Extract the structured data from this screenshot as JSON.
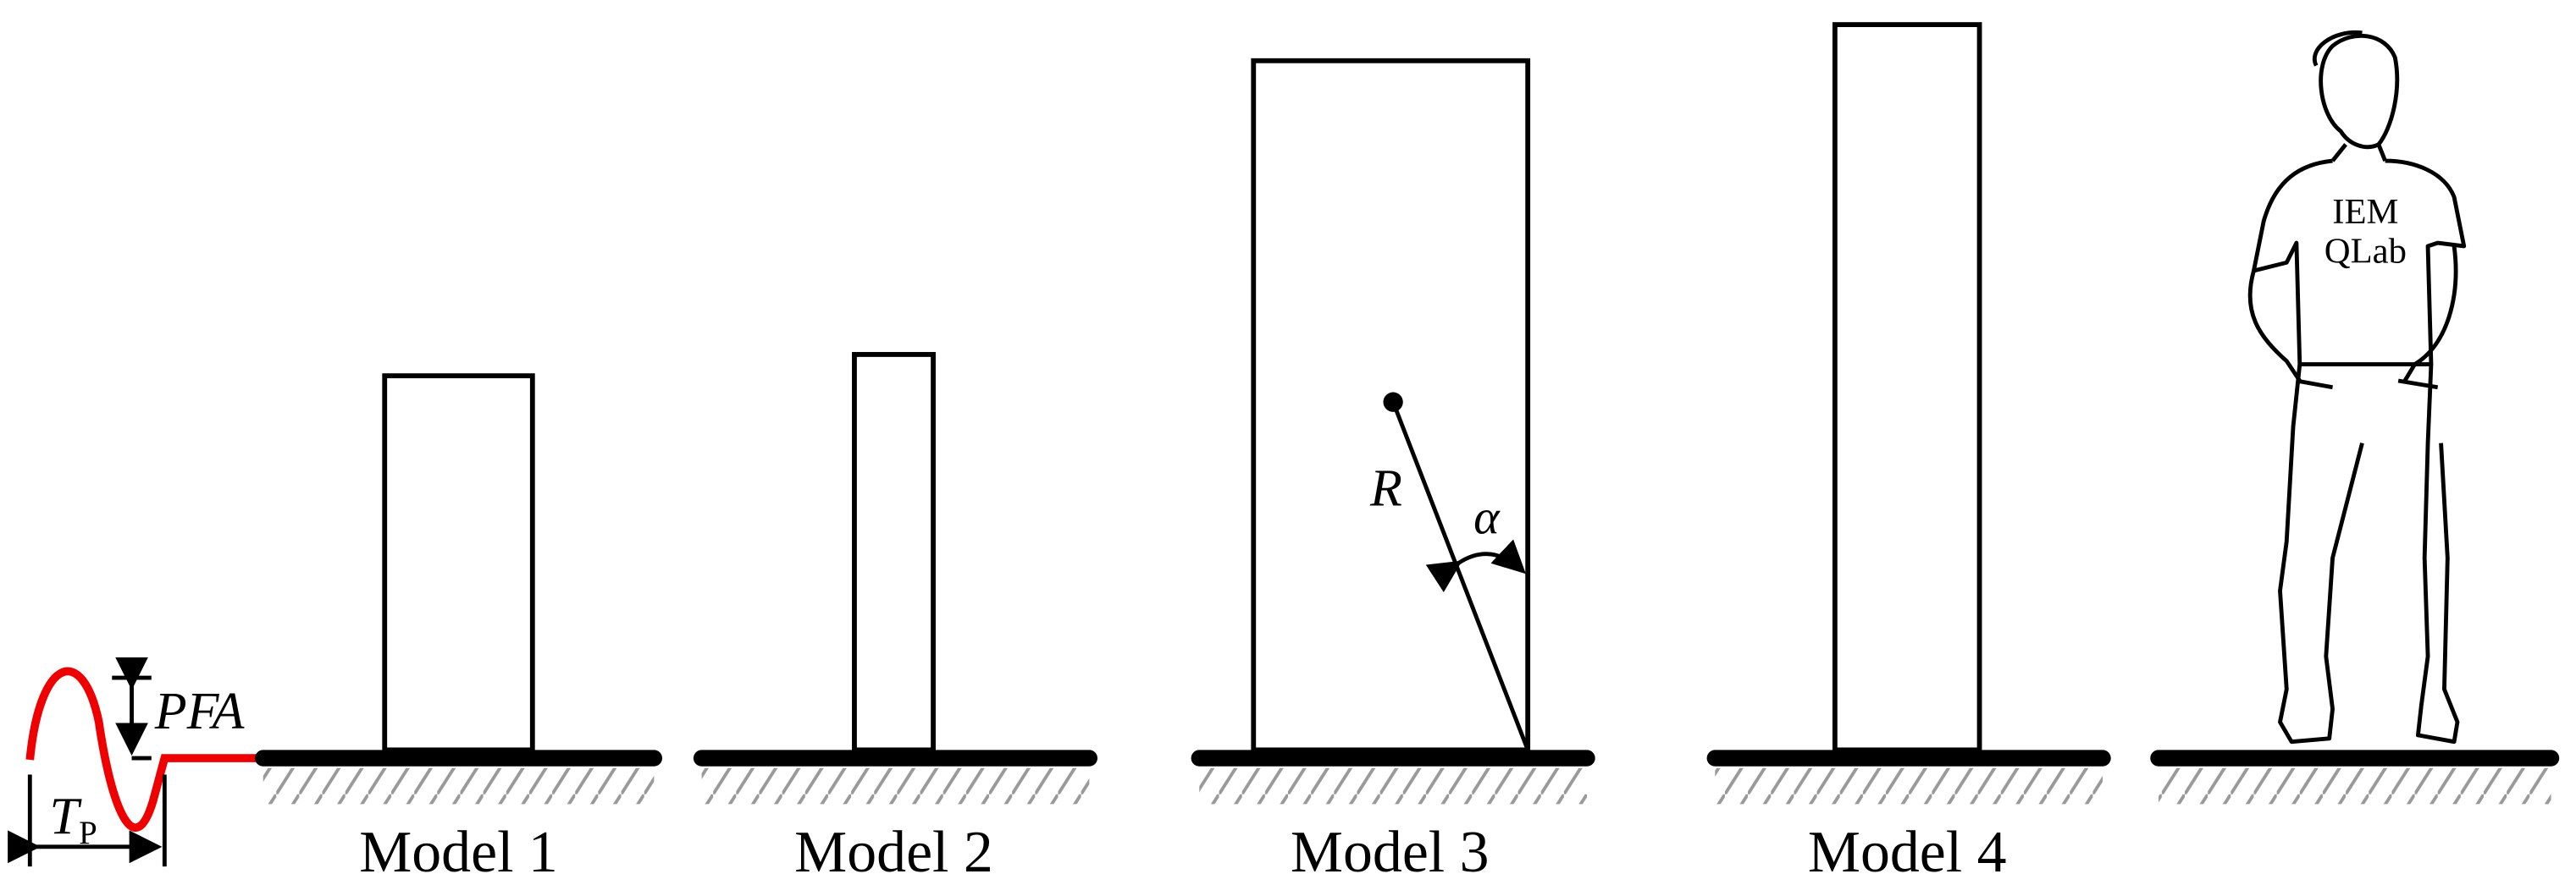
{
  "labels": {
    "pulse_amplitude": "PFA",
    "pulse_period": "T",
    "pulse_period_subscript": "P",
    "radius": "R",
    "angle": "α"
  },
  "models": [
    {
      "label": "Model 1"
    },
    {
      "label": "Model 2"
    },
    {
      "label": "Model 3"
    },
    {
      "label": "Model 4"
    }
  ],
  "shirt": {
    "line1": "IEM",
    "line2": "QLab"
  }
}
